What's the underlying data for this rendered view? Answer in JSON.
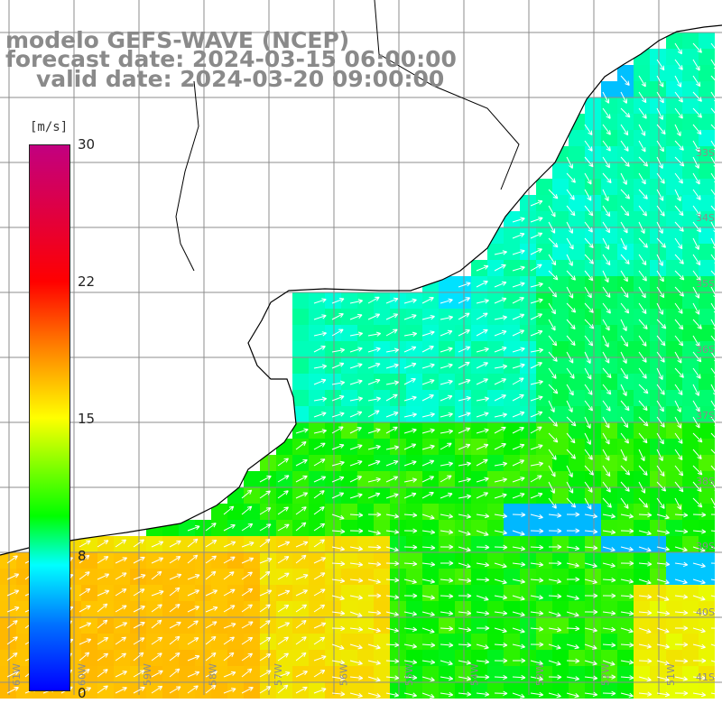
{
  "title": {
    "line1": "modelo GEFS-WAVE (NCEP)",
    "line2": "forecast date: 2024-03-15 06:00:00",
    "line3": "valid date: 2024-03-20 09:00:00"
  },
  "colorbar": {
    "unit": "[m/s]",
    "min": 0,
    "max": 30,
    "ticks": [
      "30",
      "22",
      "15",
      "8",
      "0"
    ],
    "tick_values": [
      30,
      22,
      15,
      8,
      0
    ]
  },
  "map": {
    "lon_labels": [
      "61W",
      "60W",
      "59W",
      "58W",
      "57W",
      "56W",
      "55W",
      "54W",
      "53W",
      "52W",
      "51W"
    ],
    "lat_labels": [
      "33S",
      "34S",
      "35S",
      "36S",
      "37S",
      "38S",
      "39S",
      "40S",
      "41S"
    ],
    "wind_speed_field_description_free": true,
    "colors": {
      "land": "#ffffff",
      "grid": "#8c8c8c",
      "coast": "#000000",
      "arrows": "#ffffff"
    }
  }
}
